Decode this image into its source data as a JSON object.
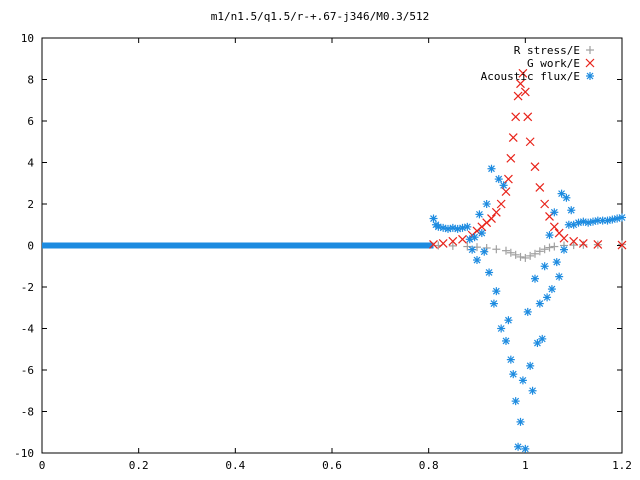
{
  "chart_data": {
    "type": "scatter",
    "title": "m1/n1.5/q1.5/r-+.67-j346/M0.3/512",
    "xlabel": "",
    "ylabel": "",
    "xlim": [
      0,
      1.2
    ],
    "ylim": [
      -10,
      10
    ],
    "x_ticks": [
      "0",
      "0.2",
      "0.4",
      "0.6",
      "0.8",
      "1",
      "1.2"
    ],
    "y_ticks": [
      "10",
      "8",
      "6",
      "4",
      "2",
      "0",
      "-2",
      "-4",
      "-6",
      "-8",
      "-10"
    ],
    "grid": false,
    "legend_position": "top-right",
    "series": [
      {
        "name": "R stress/E",
        "marker": "plus",
        "color": "#a0a0a0",
        "points": [
          [
            0.82,
            0.0
          ],
          [
            0.85,
            -0.02
          ],
          [
            0.88,
            -0.05
          ],
          [
            0.9,
            -0.08
          ],
          [
            0.92,
            -0.12
          ],
          [
            0.94,
            -0.18
          ],
          [
            0.96,
            -0.25
          ],
          [
            0.97,
            -0.35
          ],
          [
            0.98,
            -0.45
          ],
          [
            0.99,
            -0.55
          ],
          [
            1.0,
            -0.6
          ],
          [
            1.01,
            -0.5
          ],
          [
            1.02,
            -0.4
          ],
          [
            1.03,
            -0.28
          ],
          [
            1.04,
            -0.18
          ],
          [
            1.05,
            -0.1
          ],
          [
            1.06,
            -0.05
          ],
          [
            1.08,
            0.0
          ],
          [
            1.1,
            0.02
          ],
          [
            1.12,
            0.03
          ],
          [
            1.15,
            0.04
          ],
          [
            1.2,
            0.05
          ]
        ]
      },
      {
        "name": "G work/E",
        "marker": "cross",
        "color": "#e8231a",
        "points": [
          [
            0.81,
            0.05
          ],
          [
            0.83,
            0.1
          ],
          [
            0.85,
            0.2
          ],
          [
            0.87,
            0.3
          ],
          [
            0.89,
            0.5
          ],
          [
            0.9,
            0.7
          ],
          [
            0.91,
            0.9
          ],
          [
            0.92,
            1.1
          ],
          [
            0.93,
            1.3
          ],
          [
            0.94,
            1.6
          ],
          [
            0.95,
            2.0
          ],
          [
            0.96,
            2.6
          ],
          [
            0.965,
            3.2
          ],
          [
            0.97,
            4.2
          ],
          [
            0.975,
            5.2
          ],
          [
            0.98,
            6.2
          ],
          [
            0.985,
            7.2
          ],
          [
            0.99,
            7.8
          ],
          [
            0.995,
            8.3
          ],
          [
            1.0,
            7.4
          ],
          [
            1.005,
            6.2
          ],
          [
            1.01,
            5.0
          ],
          [
            1.02,
            3.8
          ],
          [
            1.03,
            2.8
          ],
          [
            1.04,
            2.0
          ],
          [
            1.05,
            1.4
          ],
          [
            1.06,
            0.9
          ],
          [
            1.07,
            0.6
          ],
          [
            1.08,
            0.35
          ],
          [
            1.1,
            0.2
          ],
          [
            1.12,
            0.1
          ],
          [
            1.15,
            0.05
          ],
          [
            1.2,
            0.02
          ]
        ]
      },
      {
        "name": "Acoustic flux/E",
        "marker": "star",
        "color": "#1d8be0",
        "points": [
          [
            0.81,
            1.3
          ],
          [
            0.815,
            1.0
          ],
          [
            0.82,
            0.9
          ],
          [
            0.83,
            0.85
          ],
          [
            0.84,
            0.8
          ],
          [
            0.85,
            0.85
          ],
          [
            0.86,
            0.8
          ],
          [
            0.87,
            0.85
          ],
          [
            0.88,
            0.9
          ],
          [
            0.885,
            0.3
          ],
          [
            0.89,
            -0.2
          ],
          [
            0.895,
            0.4
          ],
          [
            0.9,
            -0.7
          ],
          [
            0.905,
            1.5
          ],
          [
            0.91,
            0.6
          ],
          [
            0.915,
            -0.3
          ],
          [
            0.92,
            2.0
          ],
          [
            0.925,
            -1.3
          ],
          [
            0.93,
            3.7
          ],
          [
            0.935,
            -2.8
          ],
          [
            0.94,
            -2.2
          ],
          [
            0.945,
            3.2
          ],
          [
            0.95,
            -4.0
          ],
          [
            0.955,
            2.9
          ],
          [
            0.96,
            -4.6
          ],
          [
            0.965,
            -3.6
          ],
          [
            0.97,
            -5.5
          ],
          [
            0.975,
            -6.2
          ],
          [
            0.98,
            -7.5
          ],
          [
            0.985,
            -9.7
          ],
          [
            0.99,
            -8.5
          ],
          [
            0.995,
            -6.5
          ],
          [
            1.0,
            -9.8
          ],
          [
            1.005,
            -3.2
          ],
          [
            1.01,
            -5.8
          ],
          [
            1.015,
            -7.0
          ],
          [
            1.02,
            -1.6
          ],
          [
            1.025,
            -4.7
          ],
          [
            1.03,
            -2.8
          ],
          [
            1.035,
            -4.5
          ],
          [
            1.04,
            -1.0
          ],
          [
            1.045,
            -2.5
          ],
          [
            1.05,
            0.5
          ],
          [
            1.055,
            -2.1
          ],
          [
            1.06,
            1.6
          ],
          [
            1.065,
            -0.8
          ],
          [
            1.07,
            -1.5
          ],
          [
            1.075,
            2.5
          ],
          [
            1.08,
            -0.2
          ],
          [
            1.085,
            2.3
          ],
          [
            1.09,
            1.0
          ],
          [
            1.095,
            1.7
          ],
          [
            1.1,
            1.0
          ],
          [
            1.11,
            1.1
          ],
          [
            1.12,
            1.15
          ],
          [
            1.13,
            1.1
          ],
          [
            1.14,
            1.15
          ],
          [
            1.15,
            1.2
          ],
          [
            1.16,
            1.2
          ],
          [
            1.17,
            1.2
          ],
          [
            1.18,
            1.25
          ],
          [
            1.19,
            1.3
          ],
          [
            1.2,
            1.35
          ]
        ]
      }
    ]
  }
}
